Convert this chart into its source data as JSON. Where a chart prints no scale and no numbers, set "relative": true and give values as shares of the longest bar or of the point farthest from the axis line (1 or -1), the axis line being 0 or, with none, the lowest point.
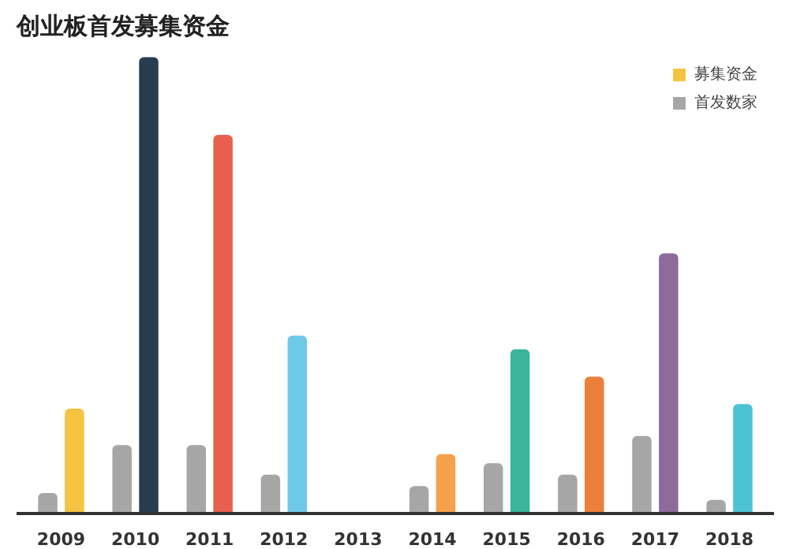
{
  "chart_data": {
    "type": "bar",
    "title": "创业板首发募集资金",
    "relative": true,
    "legend": "top right",
    "categories": [
      "2009",
      "2010",
      "2011",
      "2012",
      "2013",
      "2014",
      "2015",
      "2016",
      "2017",
      "2018"
    ],
    "series": [
      {
        "name": "首发数家",
        "color": "#a6a6a6",
        "values": [
          0.045,
          0.15,
          0.15,
          0.085,
          0,
          0.06,
          0.11,
          0.085,
          0.17,
          0.03
        ]
      },
      {
        "name": "募集资金",
        "colors": [
          "#f5c342",
          "#263d4f",
          "#e8604c",
          "#6ec8e8",
          "#cccccc",
          "#f5a04a",
          "#3ab59b",
          "#ec7f3a",
          "#8e6b9b",
          "#4bc3d3"
        ],
        "values": [
          0.23,
          1,
          0.83,
          0.39,
          0,
          0.13,
          0.36,
          0.3,
          0.57,
          0.24
        ]
      }
    ]
  }
}
